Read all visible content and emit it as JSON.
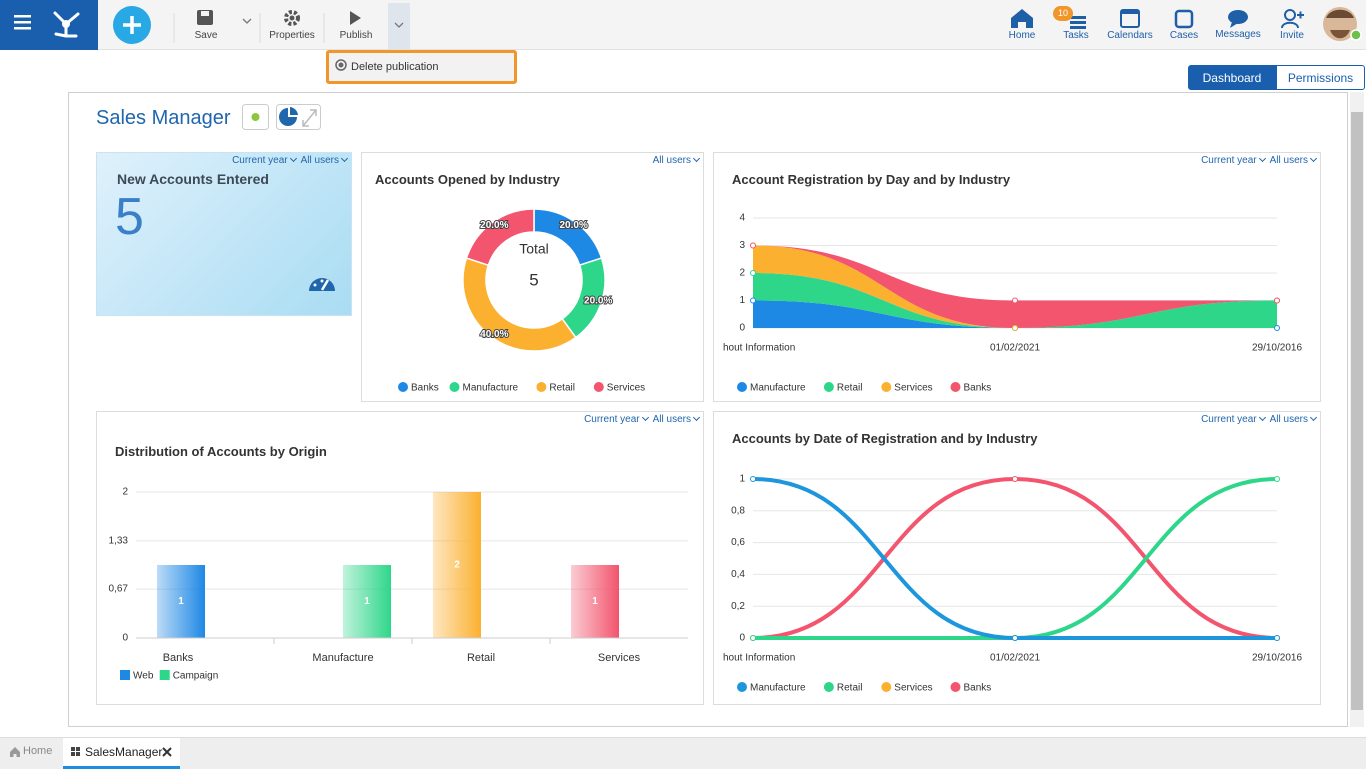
{
  "toolbar": {
    "buttons": [
      "Save",
      "Properties",
      "Publish"
    ],
    "menu_item": "Delete publication"
  },
  "nav": {
    "items": [
      "Home",
      "Tasks",
      "Calendars",
      "Cases",
      "Messages",
      "Invite"
    ],
    "tasks_badge": 10
  },
  "tabs": [
    "Dashboard",
    "Permissions"
  ],
  "dashboard": {
    "title": "Sales Manager",
    "kpi": {
      "title": "New Accounts Entered",
      "value": 5,
      "filters": [
        "Current year",
        "All users"
      ]
    }
  },
  "chart_data": [
    {
      "type": "pie",
      "donut": true,
      "title": "Accounts Opened by Industry",
      "filters": [
        "All users"
      ],
      "center_label": "Total",
      "total": 5,
      "categories": [
        "Banks",
        "Manufacture",
        "Retail",
        "Services"
      ],
      "values": [
        20,
        20,
        40,
        20
      ],
      "value_labels": [
        "20.0%",
        "20.0%",
        "40.0%",
        "20.0%"
      ],
      "colors": [
        "#1e88e5",
        "#2ed68a",
        "#fbb030",
        "#f2556d"
      ]
    },
    {
      "type": "area",
      "stacked": true,
      "title": "Account Registration by Day and by Industry",
      "filters": [
        "Current year",
        "All users"
      ],
      "categories": [
        "hout Information",
        "01/02/2021",
        "29/10/2016"
      ],
      "ylim": [
        0,
        4
      ],
      "yticks": [
        0,
        1,
        2,
        3,
        4
      ],
      "grid": true,
      "series": [
        {
          "name": "Manufacture",
          "color": "#1e88e5",
          "values": [
            1,
            0,
            0
          ]
        },
        {
          "name": "Retail",
          "color": "#2ed68a",
          "values": [
            1,
            0,
            1
          ]
        },
        {
          "name": "Services",
          "color": "#fbb030",
          "values": [
            1,
            0,
            0
          ]
        },
        {
          "name": "Banks",
          "color": "#f2556d",
          "values": [
            0,
            1,
            0
          ]
        }
      ]
    },
    {
      "type": "bar",
      "title": "Distribution of Accounts by Origin",
      "filters": [
        "Current year",
        "All users"
      ],
      "categories": [
        "Banks",
        "Manufacture",
        "Retail",
        "Services"
      ],
      "category_colors": [
        "#1e88e5",
        "#2ed68a",
        "#fbb030",
        "#f2556d"
      ],
      "ylim": [
        0,
        2
      ],
      "yticks": [
        0,
        {
          "value": 0.67,
          "label": "0,67"
        },
        {
          "value": 1.33,
          "label": "1,33"
        },
        2
      ],
      "grid": true,
      "series": [
        {
          "name": "Web",
          "color": "#1e88e5",
          "values": [
            1,
            null,
            2,
            1
          ]
        },
        {
          "name": "Campaign",
          "color": "#2ed68a",
          "values": [
            null,
            1,
            null,
            null
          ]
        }
      ]
    },
    {
      "type": "line",
      "title": "Accounts by Date of Registration and by Industry",
      "filters": [
        "Current year",
        "All users"
      ],
      "categories": [
        "hout Information",
        "01/02/2021",
        "29/10/2016"
      ],
      "ylim": [
        0,
        1
      ],
      "yticks": [
        0,
        {
          "value": 0.2,
          "label": "0,2"
        },
        {
          "value": 0.4,
          "label": "0,4"
        },
        {
          "value": 0.6,
          "label": "0,6"
        },
        {
          "value": 0.8,
          "label": "0,8"
        },
        1
      ],
      "grid": true,
      "series": [
        {
          "name": "Manufacture",
          "color": "#1e96dc",
          "values": [
            1,
            0,
            0
          ]
        },
        {
          "name": "Retail",
          "color": "#2ed68a",
          "values": [
            0,
            0,
            1
          ]
        },
        {
          "name": "Services",
          "color": "#fbb030",
          "values": [
            0,
            0,
            0
          ]
        },
        {
          "name": "Banks",
          "color": "#f2556d",
          "values": [
            0,
            1,
            0
          ]
        }
      ]
    }
  ],
  "footer_tabs": [
    "Home",
    "SalesManager"
  ]
}
